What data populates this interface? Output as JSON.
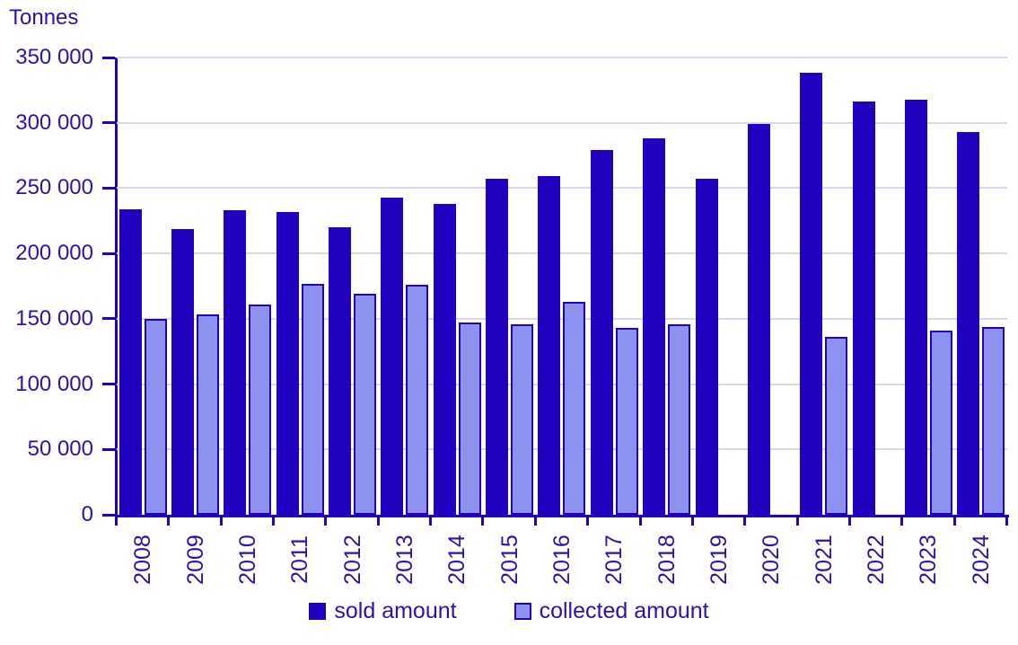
{
  "title": "Tonnes",
  "colors": {
    "sold": "#2102c0",
    "collected_fill": "#8d92ee",
    "collected_border": "#2102c0",
    "axis": "#2102c0",
    "gridline": "#d7d7f2",
    "text": "#2d10b0",
    "background": "#ffffff"
  },
  "chart_data": {
    "type": "bar",
    "title": "",
    "xlabel": "",
    "ylabel": "Tonnes",
    "ylim": [
      0,
      350000
    ],
    "ytick_step": 50000,
    "ytick_labels": [
      "0",
      "50 000",
      "100 000",
      "150 000",
      "200 000",
      "250 000",
      "300 000",
      "350 000"
    ],
    "grid": true,
    "legend_position": "bottom",
    "categories": [
      "2008",
      "2009",
      "2010",
      "2011",
      "2012",
      "2013",
      "2014",
      "2015",
      "2016",
      "2017",
      "2018",
      "2019",
      "2020",
      "2021",
      "2022",
      "2023",
      "2024"
    ],
    "series": [
      {
        "name": "sold amount",
        "color": "#2102c0",
        "values": [
          234000,
          219000,
          233000,
          232000,
          220000,
          243000,
          238000,
          257000,
          259000,
          279000,
          288000,
          257000,
          299000,
          338000,
          316000,
          318000,
          293000
        ]
      },
      {
        "name": "collected amount",
        "color": "#8d92ee",
        "values": [
          150000,
          153000,
          161000,
          177000,
          169000,
          176000,
          147000,
          146000,
          163000,
          143000,
          146000,
          null,
          null,
          136000,
          null,
          141000,
          144000
        ]
      }
    ]
  }
}
